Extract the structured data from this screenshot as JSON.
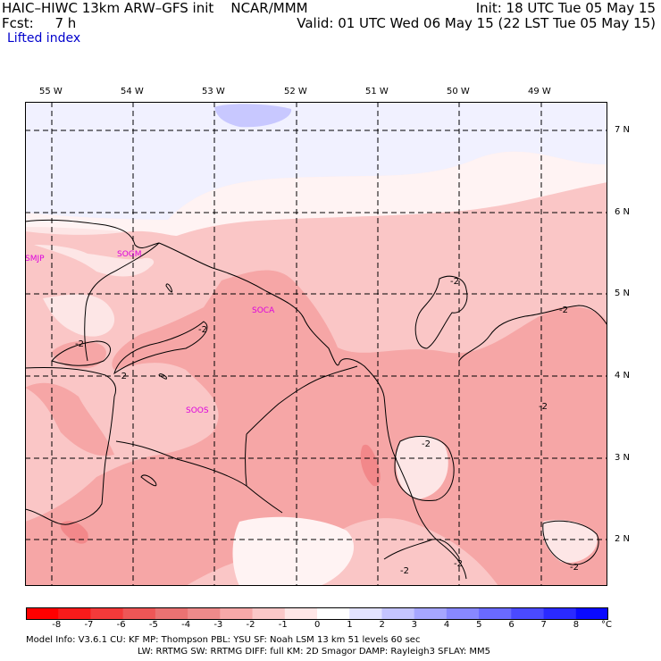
{
  "header": {
    "title": "HAIC–HIWC 13km ARW–GFS init    NCAR/MMM",
    "fcst": "Fcst:     7 h",
    "init": "Init: 18 UTC Tue 05 May 15",
    "valid": "Valid: 01 UTC Wed 06 May 15 (22 LST Tue 05 May 15)",
    "field": "Lifted index"
  },
  "map": {
    "lon_labels": [
      "55 W",
      "54 W",
      "53 W",
      "52 W",
      "51 W",
      "50 W",
      "49 W"
    ],
    "lat_labels": [
      "7 N",
      "6 N",
      "5 N",
      "4 N",
      "3 N",
      "2 N"
    ],
    "stations": [
      "SMJP",
      "SOGM",
      "SOCA",
      "SOOS"
    ],
    "contour_labels": [
      "-2",
      "-2",
      "-2",
      "-2",
      "-2",
      "-2",
      "-2",
      "-2",
      "-2",
      "-2"
    ],
    "colors": {
      "lt_-6": "#ee6a6a",
      "-6_-4": "#f2888a",
      "-4_-3": "#f6a6a6",
      "-3_-2": "#fac6c6",
      "-2_-1": "#fde6e6",
      "-1_0": "#fff3f3",
      "0_1": "#f1f1ff",
      "1_2": "#c8c8ff"
    }
  },
  "colorbar": {
    "labels": [
      "-8",
      "-7",
      "-6",
      "-5",
      "-4",
      "-3",
      "-2",
      "-1",
      "0",
      "1",
      "2",
      "3",
      "4",
      "5",
      "6",
      "7",
      "8"
    ],
    "unit": "°C",
    "colors": [
      "#ff0000",
      "#f81b1b",
      "#f33a3a",
      "#ee5656",
      "#ea7272",
      "#ee8a8a",
      "#f6a8a8",
      "#fbc8c8",
      "#ffe6e6",
      "#ffffff",
      "#e3e3ff",
      "#c4c4ff",
      "#a6a6ff",
      "#8888ff",
      "#6a6aff",
      "#4a4aff",
      "#2a2aff",
      "#0a0aff"
    ]
  },
  "footer": {
    "line1": "Model Info: V3.6.1    CU: KF       MP: Thompson     PBL: YSU       SF: Noah LSM      13 km    51 levels   60 sec",
    "line2": "LW: RRTMG    SW: RRTMG   DIFF: full    KM: 2D Smagor DAMP: Rayleigh3  SFLAY: MM5"
  }
}
